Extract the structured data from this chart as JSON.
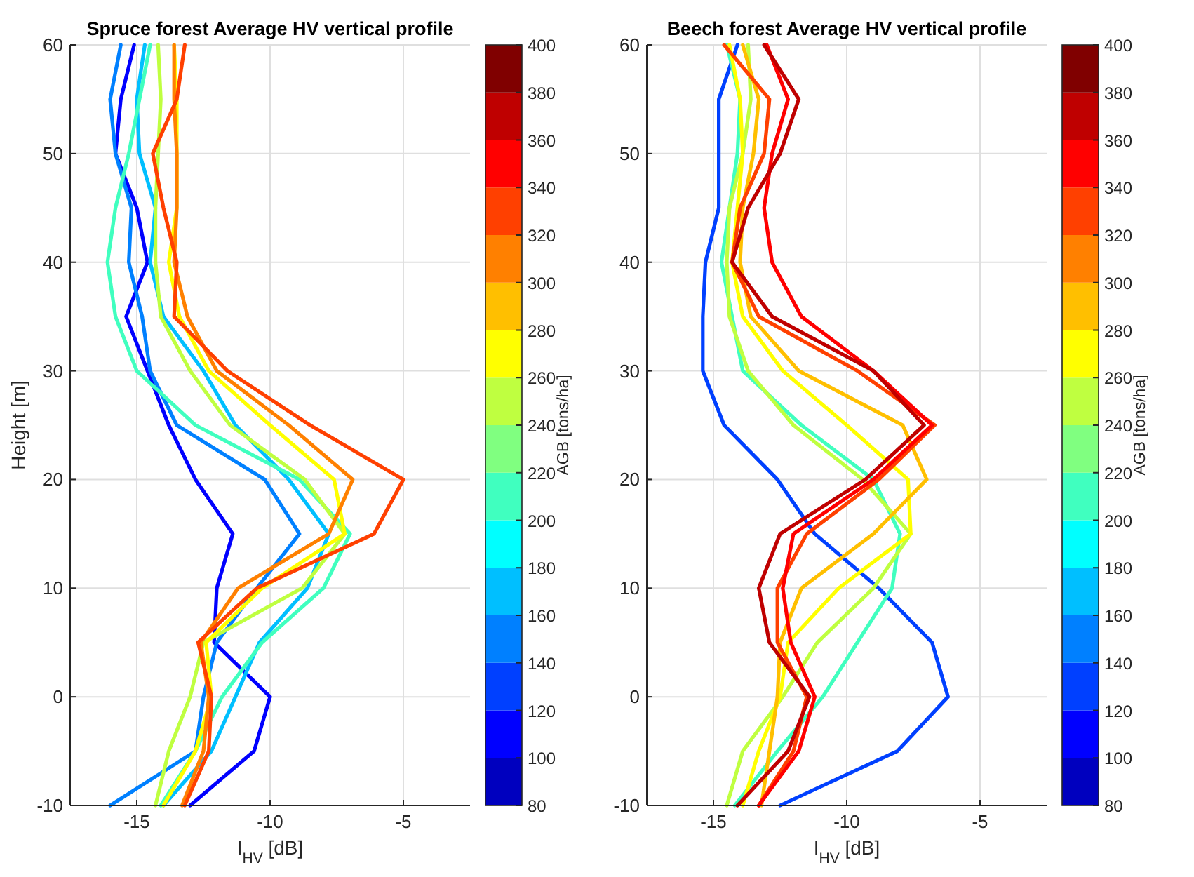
{
  "chart_data": [
    {
      "type": "line",
      "title": "Spruce forest Average HV vertical profile",
      "xlabel": "I$_{HV}$ [dB]",
      "ylabel": "Height [m]",
      "clabel": "AGB [tons/ha]",
      "clim": [
        80,
        400
      ],
      "cticks": [
        80,
        100,
        120,
        140,
        160,
        180,
        200,
        220,
        240,
        260,
        280,
        300,
        320,
        340,
        360,
        380,
        400
      ],
      "xlim": [
        -17.5,
        -2.5
      ],
      "xticks": [
        -15,
        -10,
        -5
      ],
      "ylim": [
        -10,
        60
      ],
      "yticks": [
        -10,
        0,
        10,
        20,
        30,
        40,
        50,
        60
      ],
      "grid": true,
      "series": [
        {
          "color": "#0000ff",
          "x": [
            -15.1,
            -15.6,
            -15.8,
            -15.0,
            -14.6,
            -15.4,
            -14.6,
            -13.8,
            -12.8,
            -11.4,
            -12.0,
            -12.1,
            -10.0,
            -10.6,
            -13.0
          ],
          "values": [
            60,
            55,
            50,
            45,
            40,
            35,
            30,
            25,
            20,
            15,
            10,
            5,
            0,
            -5,
            -10
          ]
        },
        {
          "color": "#0080ff",
          "x": [
            -15.6,
            -16.0,
            -15.8,
            -15.2,
            -15.3,
            -14.8,
            -14.5,
            -13.5,
            -10.2,
            -8.9,
            -10.5,
            -12.0,
            -12.5,
            -12.8,
            -16.0
          ],
          "values": [
            60,
            55,
            50,
            45,
            40,
            35,
            30,
            25,
            20,
            15,
            10,
            5,
            0,
            -5,
            -10
          ]
        },
        {
          "color": "#00bfff",
          "x": [
            -14.7,
            -15.0,
            -14.9,
            -14.3,
            -14.5,
            -14.0,
            -12.5,
            -11.3,
            -9.3,
            -7.8,
            -8.6,
            -10.4,
            -11.3,
            -12.2,
            -14.0
          ],
          "values": [
            60,
            55,
            50,
            45,
            40,
            35,
            30,
            25,
            20,
            15,
            10,
            5,
            0,
            -5,
            -10
          ]
        },
        {
          "color": "#40ffbf",
          "x": [
            -14.5,
            -14.9,
            -15.3,
            -15.8,
            -16.1,
            -15.8,
            -15.0,
            -12.8,
            -8.9,
            -7.0,
            -8.0,
            -10.3,
            -11.8,
            -12.8,
            -14.1
          ],
          "values": [
            60,
            55,
            50,
            45,
            40,
            35,
            30,
            25,
            20,
            15,
            10,
            5,
            0,
            -5,
            -10
          ]
        },
        {
          "color": "#bfff40",
          "x": [
            -14.2,
            -14.1,
            -14.2,
            -14.3,
            -14.3,
            -14.1,
            -13.0,
            -11.5,
            -8.7,
            -7.2,
            -8.8,
            -12.5,
            -13.0,
            -13.8,
            -14.3
          ],
          "values": [
            60,
            55,
            50,
            45,
            40,
            35,
            30,
            25,
            20,
            15,
            10,
            5,
            0,
            -5,
            -10
          ]
        },
        {
          "color": "#ffff00",
          "x": [
            -13.6,
            -13.5,
            -13.5,
            -13.5,
            -13.8,
            -13.4,
            -12.3,
            -10.0,
            -7.6,
            -7.2,
            -10.3,
            -12.4,
            -12.2,
            -12.8,
            -14.0
          ],
          "values": [
            60,
            55,
            50,
            45,
            40,
            35,
            30,
            25,
            20,
            15,
            10,
            5,
            0,
            -5,
            -10
          ]
        },
        {
          "color": "#ff8000",
          "x": [
            -13.6,
            -13.6,
            -13.5,
            -13.5,
            -13.6,
            -13.1,
            -12.0,
            -9.3,
            -6.9,
            -7.8,
            -11.2,
            -12.6,
            -12.3,
            -12.5,
            -13.3
          ],
          "values": [
            60,
            55,
            50,
            45,
            40,
            35,
            30,
            25,
            20,
            15,
            10,
            5,
            0,
            -5,
            -10
          ]
        },
        {
          "color": "#ff4000",
          "x": [
            -13.2,
            -13.5,
            -14.4,
            -14.0,
            -13.5,
            -13.6,
            -11.6,
            -8.5,
            -5.0,
            -6.1,
            -10.5,
            -12.7,
            -12.2,
            -12.3,
            -13.2
          ],
          "values": [
            60,
            55,
            50,
            45,
            40,
            35,
            30,
            25,
            20,
            15,
            10,
            5,
            0,
            -5,
            -10
          ]
        }
      ]
    },
    {
      "type": "line",
      "title": "Beech forest Average HV vertical profile",
      "xlabel": "I$_{HV}$ [dB]",
      "clabel": "AGB [tons/ha]",
      "clim": [
        80,
        400
      ],
      "cticks": [
        80,
        100,
        120,
        140,
        160,
        180,
        200,
        220,
        240,
        260,
        280,
        300,
        320,
        340,
        360,
        380,
        400
      ],
      "xlim": [
        -17.5,
        -2.5
      ],
      "xticks": [
        -15,
        -10,
        -5
      ],
      "ylim": [
        -10,
        60
      ],
      "yticks": [
        -10,
        0,
        10,
        20,
        30,
        40,
        50,
        60
      ],
      "grid": true,
      "series": [
        {
          "color": "#0040ff",
          "x": [
            -14.1,
            -14.8,
            -14.8,
            -14.8,
            -15.3,
            -15.4,
            -15.4,
            -14.6,
            -12.6,
            -11.2,
            -8.8,
            -6.8,
            -6.2,
            -8.1,
            -12.5
          ],
          "values": [
            60,
            55,
            50,
            45,
            40,
            35,
            30,
            25,
            20,
            15,
            10,
            5,
            0,
            -5,
            -10
          ]
        },
        {
          "color": "#40ffbf",
          "x": [
            -14.5,
            -14.0,
            -14.1,
            -14.4,
            -14.7,
            -14.3,
            -13.9,
            -11.7,
            -9.0,
            -8.0,
            -8.3,
            -9.6,
            -10.9,
            -12.6,
            -14.2
          ],
          "values": [
            60,
            55,
            50,
            45,
            40,
            35,
            30,
            25,
            20,
            15,
            10,
            5,
            0,
            -5,
            -10
          ]
        },
        {
          "color": "#bfff40",
          "x": [
            -13.7,
            -13.6,
            -13.9,
            -14.4,
            -14.5,
            -14.4,
            -13.7,
            -12.0,
            -9.4,
            -7.6,
            -9.0,
            -11.1,
            -12.4,
            -13.9,
            -14.5
          ],
          "values": [
            60,
            55,
            50,
            45,
            40,
            35,
            30,
            25,
            20,
            15,
            10,
            5,
            0,
            -5,
            -10
          ]
        },
        {
          "color": "#ffff00",
          "x": [
            -14.4,
            -14.0,
            -13.9,
            -14.1,
            -14.3,
            -13.9,
            -12.4,
            -10.0,
            -7.7,
            -7.6,
            -10.3,
            -12.2,
            -12.5,
            -13.3,
            -13.9
          ],
          "values": [
            60,
            55,
            50,
            45,
            40,
            35,
            30,
            25,
            20,
            15,
            10,
            5,
            0,
            -5,
            -10
          ]
        },
        {
          "color": "#ffbf00",
          "x": [
            -13.9,
            -13.3,
            -13.5,
            -13.9,
            -14.0,
            -13.6,
            -11.8,
            -7.9,
            -7.0,
            -9.0,
            -11.7,
            -12.5,
            -12.6,
            -12.9,
            -13.2
          ],
          "values": [
            60,
            55,
            50,
            45,
            40,
            35,
            30,
            25,
            20,
            15,
            10,
            5,
            0,
            -5,
            -10
          ]
        },
        {
          "color": "#ff4000",
          "x": [
            -14.6,
            -12.9,
            -13.1,
            -14.0,
            -14.3,
            -13.3,
            -9.6,
            -6.7,
            -8.8,
            -11.5,
            -12.6,
            -12.6,
            -11.5,
            -12.0,
            -13.3
          ],
          "values": [
            60,
            55,
            50,
            45,
            40,
            35,
            30,
            25,
            20,
            15,
            10,
            5,
            0,
            -5,
            -10
          ]
        },
        {
          "color": "#ff0000",
          "x": [
            -13.0,
            -12.2,
            -12.8,
            -13.1,
            -12.8,
            -11.7,
            -9.0,
            -6.8,
            -9.0,
            -12.0,
            -12.4,
            -12.1,
            -11.2,
            -11.8,
            -13.3
          ],
          "values": [
            60,
            55,
            50,
            45,
            40,
            35,
            30,
            25,
            20,
            15,
            10,
            5,
            0,
            -5,
            -10
          ]
        },
        {
          "color": "#bf0000",
          "x": [
            -13.1,
            -11.8,
            -12.5,
            -13.7,
            -14.3,
            -12.8,
            -9.0,
            -7.1,
            -9.3,
            -12.5,
            -13.3,
            -12.9,
            -11.4,
            -12.2,
            -14.1
          ],
          "values": [
            60,
            55,
            50,
            45,
            40,
            35,
            30,
            25,
            20,
            15,
            10,
            5,
            0,
            -5,
            -10
          ]
        }
      ]
    }
  ]
}
